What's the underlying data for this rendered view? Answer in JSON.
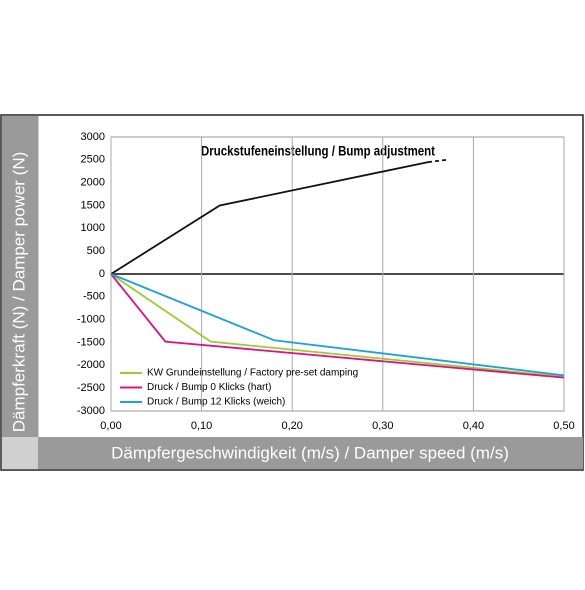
{
  "chart_data": {
    "type": "line",
    "title": "Druckstufeneinstellung / Bump adjustment",
    "x_label": "Dämpfergeschwindigkeit (m/s) / Damper speed (m/s)",
    "y_label": "Dämpferkraft (N) / Damper power (N)",
    "xlim": [
      0,
      0.5
    ],
    "ylim": [
      -3000,
      3000
    ],
    "xticks": [
      {
        "value": 0,
        "label": "0,00"
      },
      {
        "value": 0.1,
        "label": "0,10"
      },
      {
        "value": 0.2,
        "label": "0,20"
      },
      {
        "value": 0.3,
        "label": "0,30"
      },
      {
        "value": 0.4,
        "label": "0,40"
      },
      {
        "value": 0.5,
        "label": "0,50"
      }
    ],
    "yticks": [
      -3000,
      -2500,
      -2000,
      -1500,
      -1000,
      -500,
      0,
      500,
      1000,
      1500,
      2000,
      2500,
      3000
    ],
    "grid": "x",
    "legend": "lower left",
    "series": [
      {
        "color": "#111111",
        "x": [
          0,
          0.12,
          0.35,
          0.37
        ],
        "values": [
          0,
          1500,
          2450,
          2500
        ],
        "dashed_last_segment": true
      },
      {
        "name": "KW Grundeinstellung / Factory pre-set damping",
        "color": "#9acd32",
        "x": [
          0,
          0.11,
          0.5
        ],
        "values": [
          0,
          -1480,
          -2250
        ]
      },
      {
        "name": "Druck / Bump 0 Klicks (hart)",
        "color": "#e0107f",
        "x": [
          0,
          0.06,
          0.5
        ],
        "values": [
          0,
          -1480,
          -2270
        ]
      },
      {
        "name": "Druck / Bump 12 Klicks (weich)",
        "color": "#1ea0dc",
        "x": [
          0,
          0.18,
          0.5
        ],
        "values": [
          0,
          -1450,
          -2220
        ]
      }
    ]
  }
}
